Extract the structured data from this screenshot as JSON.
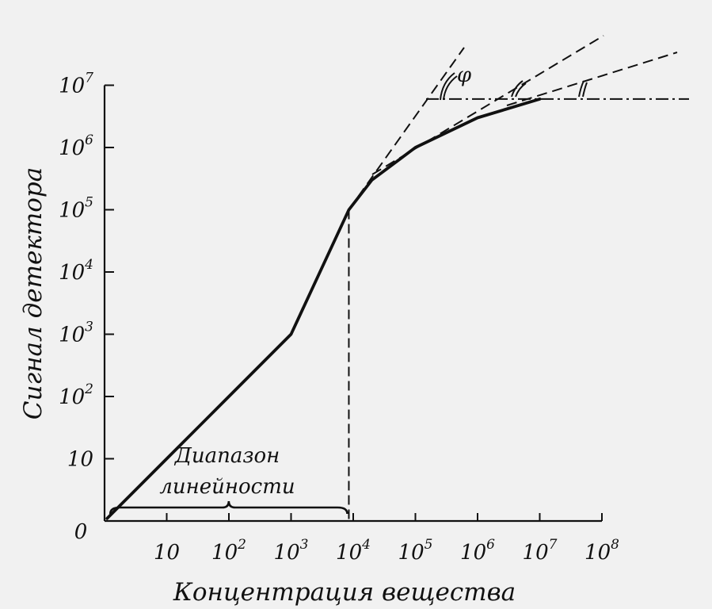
{
  "chart_data": {
    "type": "line",
    "title": "",
    "xlabel": "Концентрация вещества",
    "ylabel": "Сигнал детектора",
    "xscale": "log",
    "yscale": "log",
    "xlim": [
      1,
      100000000
    ],
    "ylim": [
      1,
      10000000
    ],
    "x_ticks": [
      {
        "base": "0",
        "exp": ""
      },
      {
        "base": "10",
        "exp": ""
      },
      {
        "base": "10",
        "exp": "2"
      },
      {
        "base": "10",
        "exp": "3"
      },
      {
        "base": "10",
        "exp": "4"
      },
      {
        "base": "10",
        "exp": "5"
      },
      {
        "base": "10",
        "exp": "6"
      },
      {
        "base": "10",
        "exp": "7"
      },
      {
        "base": "10",
        "exp": "8"
      }
    ],
    "y_ticks": [
      {
        "base": "10",
        "exp": ""
      },
      {
        "base": "10",
        "exp": "2"
      },
      {
        "base": "10",
        "exp": "3"
      },
      {
        "base": "10",
        "exp": "4"
      },
      {
        "base": "10",
        "exp": "5"
      },
      {
        "base": "10",
        "exp": "6"
      },
      {
        "base": "10",
        "exp": "7"
      }
    ],
    "origin_label": "0",
    "series": [
      {
        "x": [
          1.1,
          10,
          100,
          1000,
          8500,
          20000,
          100000,
          1000000,
          10000000
        ],
        "y": [
          1.1,
          10,
          100,
          1000,
          100000,
          300000,
          1000000,
          3000000,
          6000000
        ]
      }
    ],
    "linear_range_x": [
      1.1,
      8500
    ],
    "saturation_level": 6000000,
    "annotations": {
      "linear_range_line1": "Диапазон",
      "linear_range_line2": "линейности",
      "angle_symbol": "φ"
    }
  }
}
